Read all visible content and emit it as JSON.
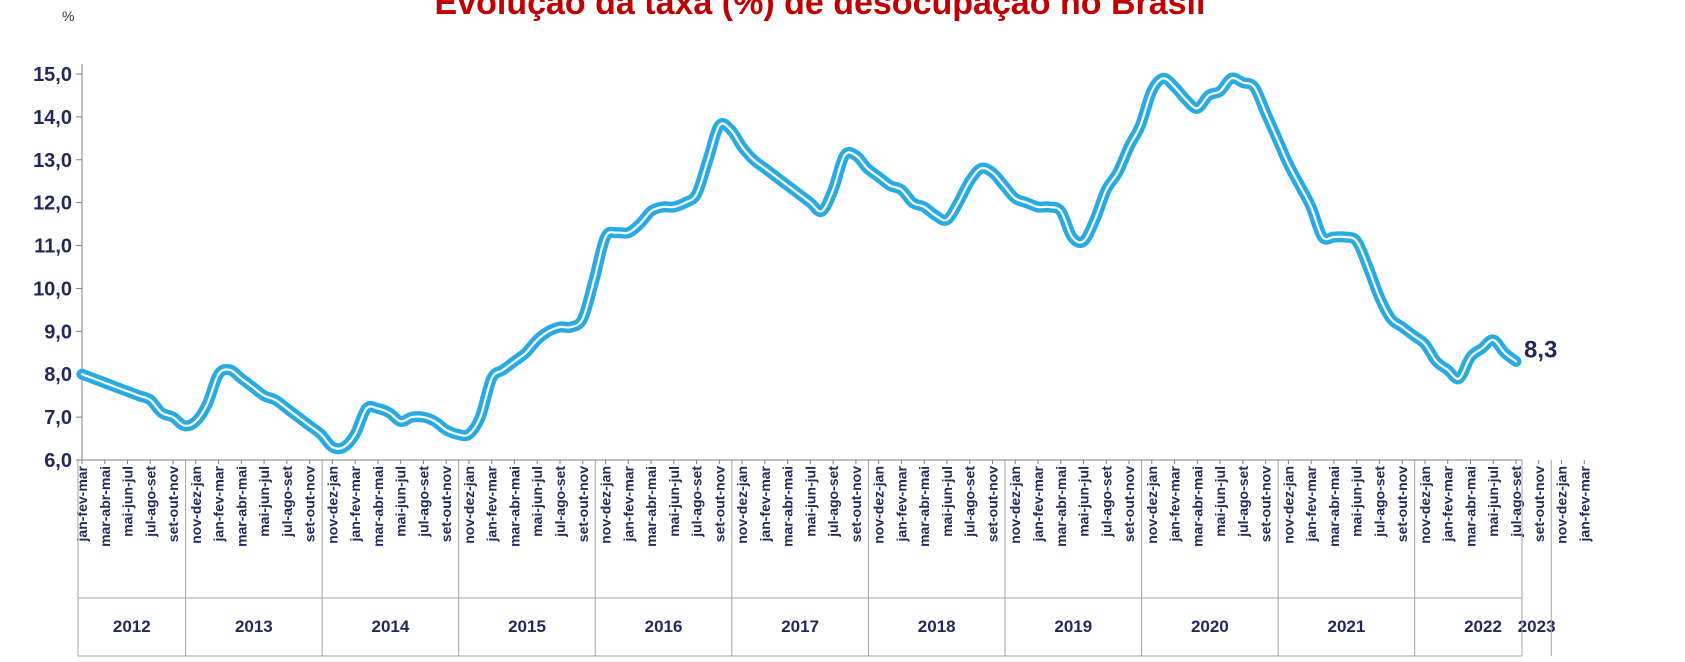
{
  "chart_data": {
    "type": "line",
    "title": "Evolução da taxa (%) de desocupação no Brasil",
    "y_unit": "%",
    "ylim": [
      6.0,
      15.0
    ],
    "y_ticks": [
      "6,0",
      "7,0",
      "8,0",
      "9,0",
      "10,0",
      "11,0",
      "12,0",
      "13,0",
      "14,0",
      "15,0"
    ],
    "grid": false,
    "series_color": "#29abe2",
    "end_label": "8,3",
    "period_labels": [
      "jan-fev-mar",
      "mar-abr-mai",
      "mai-jun-jul",
      "jul-ago-set",
      "set-out-nov",
      "nov-dez-jan"
    ],
    "years": [
      {
        "label": "2012",
        "n": 5
      },
      {
        "label": "2013",
        "n": 6
      },
      {
        "label": "2014",
        "n": 6
      },
      {
        "label": "2015",
        "n": 6
      },
      {
        "label": "2016",
        "n": 6
      },
      {
        "label": "2017",
        "n": 6
      },
      {
        "label": "2018",
        "n": 6
      },
      {
        "label": "2019",
        "n": 6
      },
      {
        "label": "2020",
        "n": 6
      },
      {
        "label": "2021",
        "n": 6
      },
      {
        "label": "2022",
        "n": 6
      },
      {
        "label": "2023",
        "n": 2
      }
    ],
    "values": [
      8.0,
      7.9,
      7.8,
      7.7,
      7.6,
      7.5,
      7.4,
      7.1,
      7.0,
      6.8,
      6.9,
      7.3,
      8.0,
      8.1,
      7.9,
      7.7,
      7.5,
      7.4,
      7.2,
      7.0,
      6.8,
      6.6,
      6.3,
      6.3,
      6.6,
      7.2,
      7.2,
      7.1,
      6.9,
      7.0,
      7.0,
      6.9,
      6.7,
      6.6,
      6.6,
      7.0,
      7.9,
      8.1,
      8.3,
      8.5,
      8.8,
      9.0,
      9.1,
      9.1,
      9.3,
      10.2,
      11.2,
      11.3,
      11.3,
      11.5,
      11.8,
      11.9,
      11.9,
      12.0,
      12.2,
      13.0,
      13.8,
      13.7,
      13.3,
      13.0,
      12.8,
      12.6,
      12.4,
      12.2,
      12.0,
      11.8,
      12.3,
      13.1,
      13.1,
      12.8,
      12.6,
      12.4,
      12.3,
      12.0,
      11.9,
      11.7,
      11.6,
      12.0,
      12.5,
      12.8,
      12.7,
      12.4,
      12.1,
      12.0,
      11.9,
      11.9,
      11.8,
      11.2,
      11.1,
      11.6,
      12.3,
      12.7,
      13.3,
      13.8,
      14.6,
      14.9,
      14.7,
      14.4,
      14.2,
      14.5,
      14.6,
      14.9,
      14.8,
      14.7,
      14.1,
      13.5,
      12.9,
      12.4,
      11.9,
      11.2,
      11.2,
      11.2,
      11.1,
      10.5,
      9.8,
      9.3,
      9.1,
      8.9,
      8.7,
      8.3,
      8.1,
      7.9,
      8.4,
      8.6,
      8.8,
      8.5,
      8.3
    ]
  }
}
